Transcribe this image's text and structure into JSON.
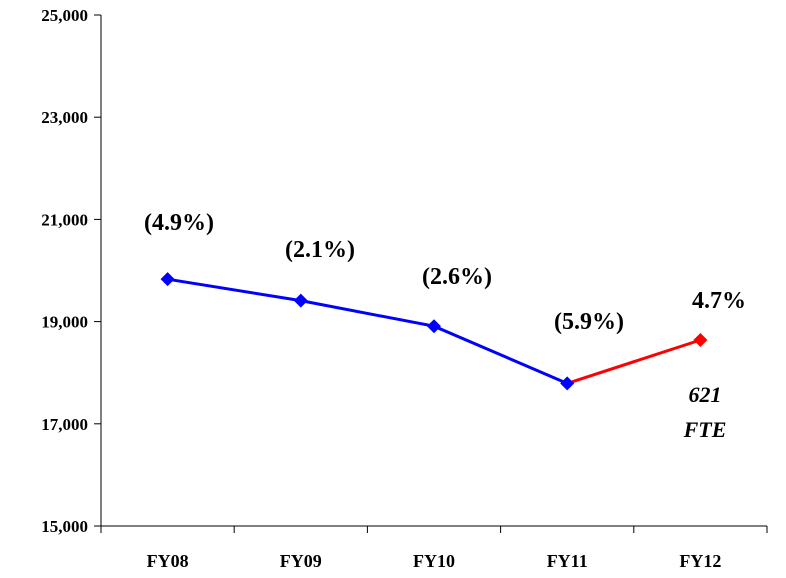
{
  "chart_data": {
    "type": "line",
    "categories": [
      "FY08",
      "FY09",
      "FY10",
      "FY11",
      "FY12"
    ],
    "ylim": [
      15000,
      25000
    ],
    "yticks": [
      "15,000",
      "17,000",
      "19,000",
      "21,000",
      "23,000",
      "25,000"
    ],
    "ytick_values": [
      15000,
      17000,
      19000,
      21000,
      23000,
      25000
    ],
    "series": [
      {
        "values": [
          19830,
          19410,
          18910,
          17790,
          null
        ],
        "color": "#0000ff"
      },
      {
        "values": [
          null,
          null,
          null,
          17790,
          18640
        ],
        "color": "#ff0000"
      }
    ],
    "data_labels": [
      "(4.9%)",
      "(2.1%)",
      "(2.6%)",
      "(5.9%)",
      "4.7%"
    ],
    "annotation": [
      "621",
      "FTE"
    ],
    "grid": false,
    "legend": "none"
  }
}
